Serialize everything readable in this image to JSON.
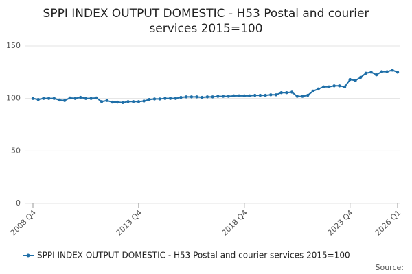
{
  "chart_data": {
    "type": "line",
    "title": [
      "SPPI INDEX OUTPUT DOMESTIC - H53 Postal and courier",
      "services 2015=100"
    ],
    "categories": [
      "2008 Q4",
      null,
      null,
      null,
      null,
      null,
      null,
      null,
      null,
      null,
      null,
      null,
      null,
      null,
      null,
      null,
      null,
      null,
      null,
      null,
      "2013 Q4",
      null,
      null,
      null,
      null,
      null,
      null,
      null,
      null,
      null,
      null,
      null,
      null,
      null,
      null,
      null,
      null,
      null,
      null,
      null,
      "2018 Q4",
      null,
      null,
      null,
      null,
      null,
      null,
      null,
      null,
      null,
      null,
      null,
      null,
      null,
      null,
      null,
      null,
      null,
      null,
      null,
      "2023 Q4",
      null,
      null,
      null,
      null,
      null,
      null,
      null,
      null,
      "2026 Q1"
    ],
    "series": [
      {
        "name": "SPPI INDEX OUTPUT DOMESTIC - H53 Postal and courier services 2015=100",
        "color": "#1f6fa8",
        "values": [
          100,
          99,
          100,
          100,
          100,
          98.5,
          98,
          100.5,
          100,
          101,
          100,
          100,
          100.5,
          97,
          98,
          96.5,
          96.5,
          96,
          97,
          97,
          97,
          97.5,
          99,
          99.5,
          99.5,
          100,
          100,
          100,
          101,
          101.5,
          101.5,
          101.5,
          101,
          101.5,
          101.5,
          102,
          102,
          102,
          102.5,
          102.5,
          102.5,
          102.5,
          103,
          103,
          103,
          103.5,
          103.5,
          105.5,
          105.5,
          106,
          102,
          102,
          103,
          107,
          109,
          111,
          111,
          112,
          112,
          111,
          118,
          117,
          120,
          124,
          125,
          122.5,
          125.5,
          125.5,
          127,
          125
        ]
      }
    ],
    "ylim": [
      0,
      150
    ],
    "yticks": [
      0,
      50,
      100,
      150
    ],
    "grid": true,
    "source": "Source:"
  }
}
